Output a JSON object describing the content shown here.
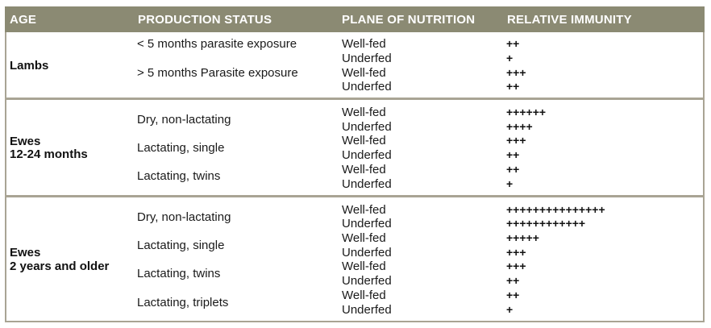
{
  "headers": {
    "age": "AGE",
    "production": "PRODUCTION STATUS",
    "nutrition": "PLANE OF NUTRITION",
    "immunity": "RELATIVE IMMUNITY"
  },
  "groups": [
    {
      "age_lines": [
        "Lambs"
      ],
      "statuses": [
        {
          "status": "< 5 months parasite exposure",
          "rows": [
            {
              "nutrition": "Well-fed",
              "immunity": "++"
            },
            {
              "nutrition": "Underfed",
              "immunity": "+"
            }
          ]
        },
        {
          "status": "> 5 months Parasite exposure",
          "rows": [
            {
              "nutrition": "Well-fed",
              "immunity": "+++"
            },
            {
              "nutrition": "Underfed",
              "immunity": "++"
            }
          ]
        }
      ]
    },
    {
      "age_lines": [
        "Ewes",
        "12-24 months"
      ],
      "statuses": [
        {
          "status": "Dry, non-lactating",
          "rows": [
            {
              "nutrition": "Well-fed",
              "immunity": "++++++"
            },
            {
              "nutrition": "Underfed",
              "immunity": "++++"
            }
          ]
        },
        {
          "status": "Lactating, single",
          "rows": [
            {
              "nutrition": "Well-fed",
              "immunity": "+++"
            },
            {
              "nutrition": "Underfed",
              "immunity": "++"
            }
          ]
        },
        {
          "status": "Lactating, twins",
          "rows": [
            {
              "nutrition": "Well-fed",
              "immunity": "++"
            },
            {
              "nutrition": "Underfed",
              "immunity": "+"
            }
          ]
        }
      ]
    },
    {
      "age_lines": [
        "Ewes",
        "2 years and older"
      ],
      "statuses": [
        {
          "status": "Dry, non-lactating",
          "rows": [
            {
              "nutrition": "Well-fed",
              "immunity": "+++++++++++++++"
            },
            {
              "nutrition": "Underfed",
              "immunity": "++++++++++++"
            }
          ]
        },
        {
          "status": "Lactating, single",
          "rows": [
            {
              "nutrition": "Well-fed",
              "immunity": "+++++"
            },
            {
              "nutrition": "Underfed",
              "immunity": "+++"
            }
          ]
        },
        {
          "status": "Lactating, twins",
          "rows": [
            {
              "nutrition": "Well-fed",
              "immunity": "+++"
            },
            {
              "nutrition": "Underfed",
              "immunity": "++"
            }
          ]
        },
        {
          "status": "Lactating, triplets",
          "rows": [
            {
              "nutrition": "Well-fed",
              "immunity": "++"
            },
            {
              "nutrition": "Underfed",
              "immunity": "+"
            }
          ]
        }
      ]
    }
  ]
}
